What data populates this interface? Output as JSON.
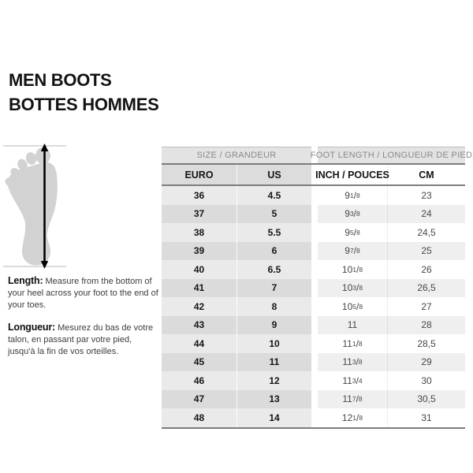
{
  "page": {
    "title_line1": "MEN BOOTS",
    "title_line2": "BOTTES HOMMES"
  },
  "measure_guide": {
    "en_label": "Length:",
    "en_text": "Measure from the bottom of your heel across your foot to the end of your toes.",
    "fr_label": "Longueur:",
    "fr_text": "Mesurez du bas de votre talon, en passant par votre pied, jusqu'à la fin de vos orteilles.",
    "illustration": "foot-length-measurement-diagram"
  },
  "size_chart": {
    "group_headers": [
      {
        "label": "SIZE / GRANDEUR"
      },
      {
        "label": "FOOT LENGTH / LONGUEUR DE PIED"
      }
    ],
    "column_headers": [
      "EURO",
      "US",
      "INCH / POUCES",
      "CM"
    ],
    "rows": [
      [
        "36",
        "4.5",
        "9 1/8",
        "23"
      ],
      [
        "37",
        "5",
        "9 3/8",
        "24"
      ],
      [
        "38",
        "5.5",
        "9 5/8",
        "24,5"
      ],
      [
        "39",
        "6",
        "9 7/8",
        "25"
      ],
      [
        "40",
        "6.5",
        "10 1/8",
        "26"
      ],
      [
        "41",
        "7",
        "10 3/8",
        "26,5"
      ],
      [
        "42",
        "8",
        "10 5/8",
        "27"
      ],
      [
        "43",
        "9",
        "11",
        "28"
      ],
      [
        "44",
        "10",
        "11 1/8",
        "28,5"
      ],
      [
        "45",
        "11",
        "11 3/8",
        "29"
      ],
      [
        "46",
        "12",
        "11 3/4",
        "30"
      ],
      [
        "47",
        "13",
        "11 7/8",
        "30,5"
      ],
      [
        "48",
        "14",
        "12 1/8",
        "31"
      ]
    ]
  },
  "colors": {
    "title_text": "#131313",
    "group_header_bg": "#e3e3e3",
    "group_header_text": "#8a8a8a",
    "header_left_bg": "#dcdcdc",
    "row_left_light": "#eaeaea",
    "row_left_dark": "#dbdbdb",
    "row_right_light": "#ffffff",
    "row_right_dark": "#efefef",
    "rule_line": "#7d7d7d",
    "body_text_gray": "#474747",
    "foot_fill": "#d2d2d2",
    "arrow": "#000000"
  }
}
